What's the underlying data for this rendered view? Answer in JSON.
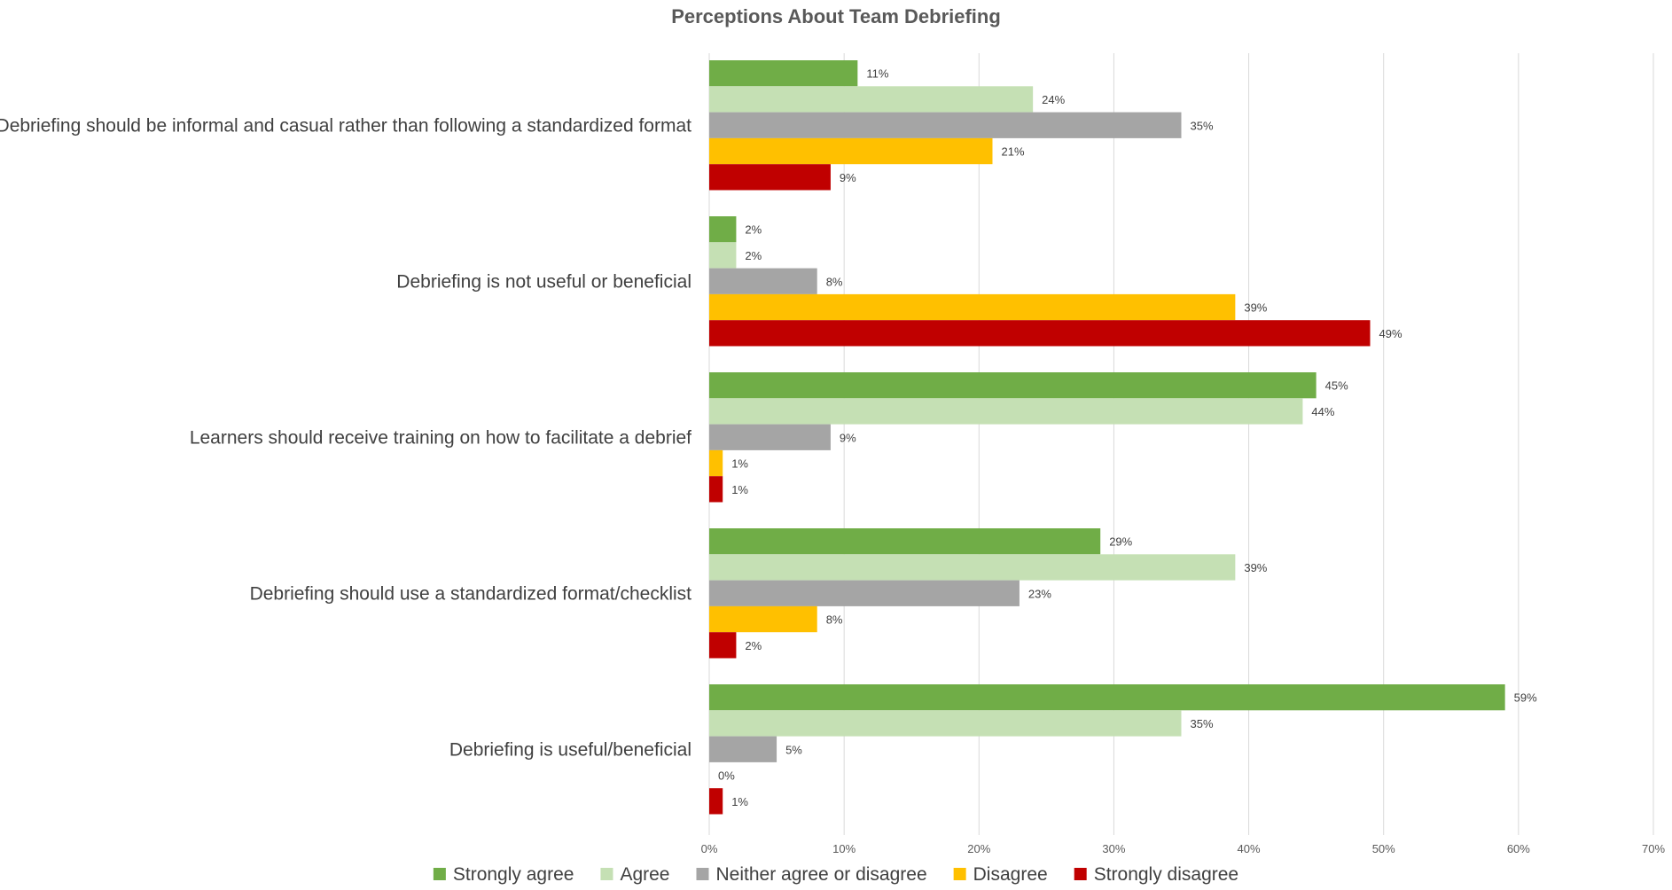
{
  "chart_data": {
    "type": "bar",
    "orientation": "horizontal",
    "title": "Perceptions About Team Debriefing",
    "categories": [
      "Debriefing should be informal and casual rather than following a standardized format",
      "Debriefing is not useful or beneficial",
      "Learners should receive training on how to facilitate a debrief",
      "Debriefing should use a standardized format/checklist",
      "Debriefing is useful/beneficial"
    ],
    "series": [
      {
        "name": "Strongly agree",
        "color": "#70AD47",
        "values": [
          11,
          2,
          45,
          29,
          59
        ],
        "labels": [
          "11%",
          "2%",
          "45%",
          "29%",
          "59%"
        ]
      },
      {
        "name": "Agree",
        "color": "#C5E0B4",
        "values": [
          24,
          2,
          44,
          39,
          35
        ],
        "labels": [
          "24%",
          "2%",
          "44%",
          "39%",
          "35%"
        ]
      },
      {
        "name": "Neither agree or disagree",
        "color": "#A5A5A5",
        "values": [
          35,
          8,
          9,
          23,
          5
        ],
        "labels": [
          "35%",
          "8%",
          "9%",
          "23%",
          "5%"
        ]
      },
      {
        "name": "Disagree",
        "color": "#FFC000",
        "values": [
          21,
          39,
          1,
          8,
          0
        ],
        "labels": [
          "21%",
          "39%",
          "1%",
          "8%",
          "0%"
        ]
      },
      {
        "name": "Strongly disagree",
        "color": "#C00000",
        "values": [
          9,
          49,
          1,
          2,
          1
        ],
        "labels": [
          "9%",
          "49%",
          "1%",
          "2%",
          "1%"
        ]
      }
    ],
    "xlim": [
      0,
      70
    ],
    "xticks": [
      "0%",
      "10%",
      "20%",
      "30%",
      "40%",
      "50%",
      "60%",
      "70%"
    ],
    "grid": true,
    "legend": "bottom"
  }
}
